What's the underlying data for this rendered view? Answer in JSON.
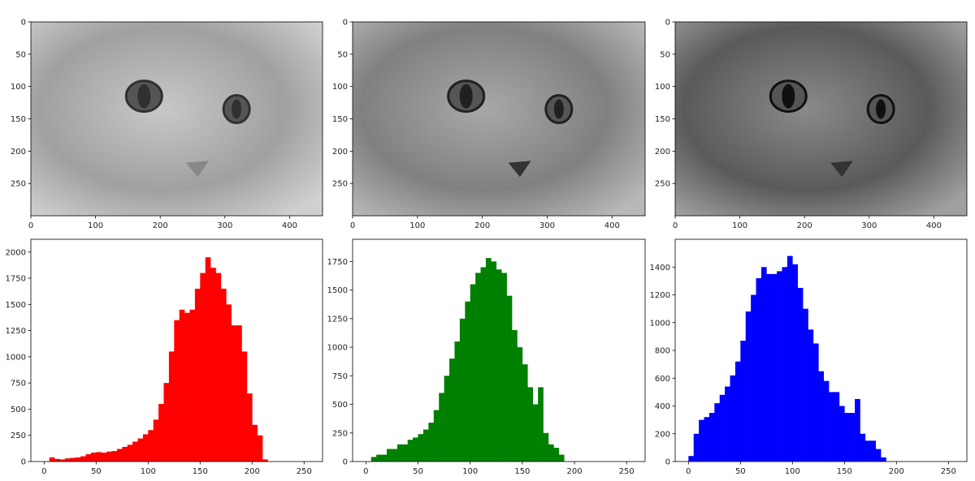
{
  "images": [
    {
      "xticks": [
        0,
        100,
        200,
        300,
        400
      ],
      "yticks": [
        0,
        50,
        100,
        150,
        200,
        250
      ],
      "xlim": [
        0,
        451
      ],
      "ylim": [
        300,
        0
      ],
      "tone": "light"
    },
    {
      "xticks": [
        0,
        100,
        200,
        300,
        400
      ],
      "yticks": [
        0,
        50,
        100,
        150,
        200,
        250
      ],
      "xlim": [
        0,
        451
      ],
      "ylim": [
        300,
        0
      ],
      "tone": "medium"
    },
    {
      "xticks": [
        0,
        100,
        200,
        300,
        400
      ],
      "yticks": [
        0,
        50,
        100,
        150,
        200,
        250
      ],
      "xlim": [
        0,
        451
      ],
      "ylim": [
        300,
        0
      ],
      "tone": "dark"
    }
  ],
  "chart_data": [
    {
      "type": "bar",
      "color": "#ff0000",
      "xlim": [
        -12.75,
        267.75
      ],
      "ylim": [
        0,
        2122
      ],
      "xticks": [
        0,
        50,
        100,
        150,
        200,
        250
      ],
      "yticks": [
        0,
        250,
        500,
        750,
        1000,
        1250,
        1500,
        1750,
        2000
      ],
      "x": [
        0,
        5,
        10,
        15,
        20,
        25,
        30,
        35,
        40,
        45,
        50,
        55,
        60,
        65,
        70,
        75,
        80,
        85,
        90,
        95,
        100,
        105,
        110,
        115,
        120,
        125,
        130,
        135,
        140,
        145,
        150,
        155,
        160,
        165,
        170,
        175,
        180,
        185,
        190,
        195,
        200,
        205,
        210,
        215,
        220,
        225,
        230,
        235,
        240,
        245,
        250,
        255
      ],
      "values": [
        0,
        40,
        25,
        20,
        30,
        35,
        40,
        50,
        70,
        85,
        90,
        85,
        95,
        100,
        120,
        140,
        160,
        190,
        220,
        260,
        300,
        400,
        550,
        750,
        1050,
        1350,
        1450,
        1420,
        1450,
        1650,
        1800,
        1950,
        1850,
        1800,
        1650,
        1500,
        1300,
        1300,
        1050,
        650,
        350,
        250,
        20,
        0,
        0,
        0,
        0,
        0,
        0,
        0,
        0,
        0
      ]
    },
    {
      "type": "bar",
      "color": "#008000",
      "xlim": [
        -12.75,
        267.75
      ],
      "ylim": [
        0,
        1944
      ],
      "xticks": [
        0,
        50,
        100,
        150,
        200,
        250
      ],
      "yticks": [
        0,
        250,
        500,
        750,
        1000,
        1250,
        1500,
        1750
      ],
      "x": [
        0,
        5,
        10,
        15,
        20,
        25,
        30,
        35,
        40,
        45,
        50,
        55,
        60,
        65,
        70,
        75,
        80,
        85,
        90,
        95,
        100,
        105,
        110,
        115,
        120,
        125,
        130,
        135,
        140,
        145,
        150,
        155,
        160,
        165,
        170,
        175,
        180,
        185,
        190,
        195,
        200,
        205,
        210,
        215,
        220,
        225,
        230,
        235,
        240,
        245,
        250,
        255
      ],
      "values": [
        0,
        40,
        60,
        60,
        110,
        110,
        150,
        150,
        190,
        210,
        240,
        280,
        340,
        450,
        600,
        750,
        900,
        1050,
        1250,
        1400,
        1550,
        1650,
        1700,
        1780,
        1750,
        1680,
        1650,
        1450,
        1150,
        1000,
        850,
        650,
        500,
        650,
        250,
        150,
        120,
        60,
        0,
        0,
        0,
        0,
        0,
        0,
        0,
        0,
        0,
        0,
        0,
        0,
        0,
        0
      ]
    },
    {
      "type": "bar",
      "color": "#0000ff",
      "xlim": [
        -12.75,
        267.75
      ],
      "ylim": [
        0,
        1600
      ],
      "xticks": [
        0,
        50,
        100,
        150,
        200,
        250
      ],
      "yticks": [
        0,
        200,
        400,
        600,
        800,
        1000,
        1200,
        1400
      ],
      "x": [
        0,
        5,
        10,
        15,
        20,
        25,
        30,
        35,
        40,
        45,
        50,
        55,
        60,
        65,
        70,
        75,
        80,
        85,
        90,
        95,
        100,
        105,
        110,
        115,
        120,
        125,
        130,
        135,
        140,
        145,
        150,
        155,
        160,
        165,
        170,
        175,
        180,
        185,
        190,
        195,
        200,
        205,
        210,
        215,
        220,
        225,
        230,
        235,
        240,
        245,
        250,
        255
      ],
      "values": [
        40,
        200,
        300,
        320,
        350,
        420,
        480,
        540,
        620,
        720,
        870,
        1080,
        1200,
        1320,
        1400,
        1350,
        1350,
        1370,
        1400,
        1480,
        1420,
        1250,
        1100,
        950,
        850,
        650,
        580,
        500,
        500,
        400,
        350,
        350,
        450,
        200,
        150,
        150,
        90,
        30,
        0,
        0,
        0,
        0,
        0,
        0,
        0,
        0,
        0,
        0,
        0,
        0,
        0,
        0
      ]
    }
  ]
}
